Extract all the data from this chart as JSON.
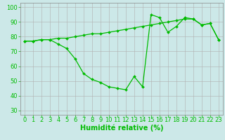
{
  "xlabel": "Humidité relative (%)",
  "background_color": "#cce8e8",
  "grid_color": "#b0b0b0",
  "line_color": "#00bb00",
  "xlim": [
    -0.5,
    23.5
  ],
  "ylim": [
    27,
    103
  ],
  "yticks": [
    30,
    40,
    50,
    60,
    70,
    80,
    90,
    100
  ],
  "xticks": [
    0,
    1,
    2,
    3,
    4,
    5,
    6,
    7,
    8,
    9,
    10,
    11,
    12,
    13,
    14,
    15,
    16,
    17,
    18,
    19,
    20,
    21,
    22,
    23
  ],
  "series1_x": [
    0,
    1,
    2,
    3,
    4,
    5,
    6,
    7,
    8,
    9,
    10,
    11,
    12,
    13,
    14,
    15,
    16,
    17,
    18,
    19,
    20,
    21,
    22,
    23
  ],
  "series1_y": [
    77,
    77,
    78,
    78,
    79,
    79,
    80,
    81,
    82,
    82,
    83,
    84,
    85,
    86,
    87,
    88,
    89,
    90,
    91,
    92,
    92,
    88,
    89,
    78
  ],
  "series2_x": [
    0,
    1,
    2,
    3,
    4,
    5,
    6,
    7,
    8,
    9,
    10,
    11,
    12,
    13,
    14,
    15,
    16,
    17,
    18,
    19,
    20,
    21,
    22,
    23
  ],
  "series2_y": [
    77,
    77,
    78,
    78,
    75,
    72,
    65,
    55,
    51,
    49,
    46,
    45,
    44,
    53,
    46,
    95,
    93,
    83,
    87,
    93,
    92,
    88,
    89,
    78
  ],
  "marker_size": 2.0,
  "line_width": 0.9,
  "xlabel_color": "#00bb00",
  "xlabel_fontsize": 7,
  "tick_fontsize": 6,
  "tick_color": "#00bb00"
}
